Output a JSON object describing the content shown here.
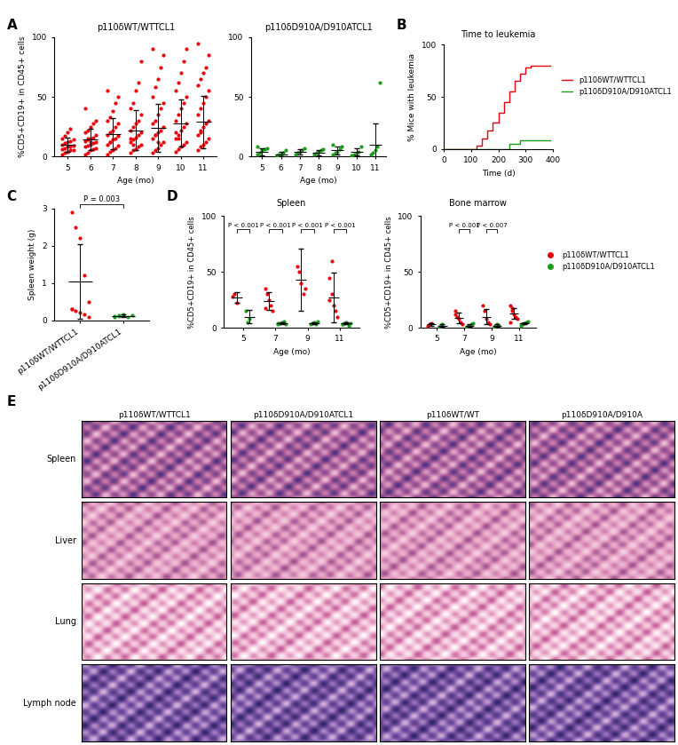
{
  "chart_data": [
    {
      "panel": "A",
      "type": "dot_plot",
      "ylabel": "%CD5+CD19+ in CD45+ cells",
      "ylim": [
        0,
        100
      ],
      "yticks": [
        0,
        50,
        100
      ],
      "groups": [
        {
          "name": "p110δWT/WTTCL1",
          "color": "#e8000b",
          "xlabel": "Age (mo)",
          "categories": [
            "5",
            "6",
            "7",
            "8",
            "9",
            "10",
            "11"
          ],
          "values": [
            [
              2,
              3,
              4,
              5,
              5,
              6,
              7,
              8,
              8,
              9,
              10,
              11,
              12,
              13,
              14,
              15,
              17,
              20,
              23
            ],
            [
              2,
              3,
              5,
              6,
              7,
              8,
              9,
              10,
              11,
              12,
              13,
              14,
              15,
              16,
              18,
              20,
              22,
              25,
              28,
              30,
              40,
              15,
              12
            ],
            [
              2,
              4,
              5,
              7,
              9,
              10,
              12,
              14,
              15,
              17,
              18,
              20,
              22,
              25,
              28,
              30,
              33,
              38,
              45,
              50,
              55,
              12
            ],
            [
              3,
              5,
              6,
              8,
              10,
              12,
              14,
              16,
              18,
              20,
              22,
              25,
              28,
              30,
              35,
              40,
              45,
              55,
              62,
              80,
              15,
              10
            ],
            [
              3,
              5,
              7,
              10,
              12,
              15,
              18,
              20,
              22,
              25,
              28,
              30,
              35,
              40,
              45,
              50,
              58,
              65,
              75,
              85,
              90,
              18,
              12
            ],
            [
              4,
              6,
              8,
              10,
              12,
              15,
              18,
              22,
              25,
              28,
              30,
              35,
              40,
              45,
              50,
              55,
              62,
              70,
              80,
              90,
              20,
              15
            ],
            [
              5,
              8,
              10,
              12,
              15,
              18,
              20,
              25,
              28,
              30,
              35,
              40,
              45,
              50,
              55,
              60,
              65,
              70,
              75,
              85,
              95,
              22
            ]
          ],
          "mean": [
            10,
            14,
            19,
            22,
            24,
            28,
            29
          ],
          "sd": [
            6,
            9,
            13,
            17,
            20,
            20,
            22
          ]
        },
        {
          "name": "p110δD910A/D910ATCL1",
          "color": "#1a9e1a",
          "xlabel": "Age (mo)",
          "categories": [
            "5",
            "6",
            "7",
            "8",
            "9",
            "10",
            "11"
          ],
          "values": [
            [
              2,
              3,
              5,
              6,
              7,
              8
            ],
            [
              1,
              2,
              2,
              3,
              5
            ],
            [
              2,
              3,
              4,
              5,
              7
            ],
            [
              2,
              3,
              4,
              5,
              6
            ],
            [
              2,
              3,
              4,
              6,
              8,
              10
            ],
            [
              1,
              2,
              3,
              4,
              8
            ],
            [
              2,
              3,
              5,
              8,
              62
            ]
          ],
          "mean": [
            4,
            2,
            4,
            3,
            5,
            4,
            10
          ],
          "sd": [
            3,
            2,
            2,
            2,
            3,
            3,
            18
          ]
        }
      ]
    },
    {
      "panel": "B",
      "type": "line",
      "title": "Time to leukemia",
      "xlabel": "Time (d)",
      "ylabel": "% Mice with leukemia",
      "xlim": [
        0,
        400
      ],
      "xticks": [
        0,
        100,
        200,
        300,
        400
      ],
      "ylim": [
        0,
        100
      ],
      "yticks": [
        0,
        50,
        100
      ],
      "legend": "right",
      "series": [
        {
          "name": "p110δWT/WTTCL1",
          "color": "#e8000b",
          "line_style": "steps",
          "x": [
            0,
            120,
            140,
            160,
            180,
            200,
            220,
            240,
            260,
            280,
            300,
            320,
            390
          ],
          "values": [
            0,
            3,
            10,
            18,
            25,
            35,
            45,
            55,
            65,
            72,
            78,
            80,
            80
          ]
        },
        {
          "name": "p110δD910A/D910ATCL1",
          "color": "#1a9e1a",
          "line_style": "steps",
          "x": [
            0,
            240,
            280,
            390
          ],
          "values": [
            0,
            5,
            8,
            8
          ]
        }
      ]
    },
    {
      "panel": "C",
      "type": "dot_plot",
      "ylabel": "Spleen weight (g)",
      "ylim": [
        0,
        3
      ],
      "yticks": [
        0,
        1,
        2,
        3
      ],
      "categories": [
        "p110δWT/WTTCL1",
        "p110δD910A/D910ATCL1"
      ],
      "colors": [
        "#e8000b",
        "#1a9e1a"
      ],
      "values": [
        [
          2.9,
          2.5,
          2.2,
          1.2,
          0.5,
          0.3,
          0.25,
          0.2,
          0.15,
          0.1,
          0.3
        ],
        [
          0.1,
          0.12,
          0.15,
          0.1,
          0.13,
          0.11,
          0.14
        ]
      ],
      "mean": [
        1.05,
        0.12
      ],
      "sd": [
        1.0,
        0.03
      ],
      "annotation": "P = 0.003"
    },
    {
      "panel": "D",
      "type": "dot_plot",
      "title": "Spleen",
      "xlabel": "Age (mo)",
      "ylabel": "%CD5+CD19+ in CD45+ cells",
      "ylim": [
        0,
        100
      ],
      "yticks": [
        0,
        50,
        100
      ],
      "categories": [
        "5",
        "7",
        "9",
        "11"
      ],
      "series": [
        {
          "color": "#e8000b",
          "values": [
            [
              28,
              30,
              22
            ],
            [
              35,
              30,
              25,
              20,
              15,
              18
            ],
            [
              55,
              50,
              40,
              30,
              35
            ],
            [
              45,
              30,
              20,
              15,
              10,
              25,
              60
            ]
          ],
          "mean": [
            27,
            24,
            43,
            27
          ],
          "sd": [
            5,
            8,
            28,
            22
          ]
        },
        {
          "color": "#1a9e1a",
          "values": [
            [
              15,
              5,
              8
            ],
            [
              3,
              4,
              5,
              6,
              3,
              4
            ],
            [
              3,
              4,
              5,
              3,
              6
            ],
            [
              3,
              4,
              5,
              2,
              4,
              3
            ]
          ],
          "mean": [
            10,
            4,
            4,
            4
          ],
          "sd": [
            6,
            1,
            1,
            1
          ]
        }
      ],
      "annotations": [
        {
          "category": "5",
          "text": "P < 0.001"
        },
        {
          "category": "7",
          "text": "P < 0.001"
        },
        {
          "category": "9",
          "text": "P < 0.001"
        },
        {
          "category": "11",
          "text": "P < 0.001"
        }
      ]
    },
    {
      "type": "dot_plot",
      "title": "Bone marrow",
      "xlabel": "Age (mo)",
      "ylabel": "%CD5+CD19+ in CD45+ cells",
      "ylim": [
        0,
        100
      ],
      "yticks": [
        0,
        50,
        100
      ],
      "categories": [
        "5",
        "7",
        "9",
        "11"
      ],
      "legend": "right",
      "series": [
        {
          "name": "p110δWT/WTTCL1",
          "color": "#e8000b",
          "values": [
            [
              2,
              3,
              4
            ],
            [
              15,
              10,
              8,
              5,
              3,
              12
            ],
            [
              20,
              15,
              8,
              5,
              3
            ],
            [
              20,
              15,
              12,
              10,
              8,
              5,
              18
            ]
          ],
          "mean": [
            3,
            9,
            10,
            13
          ],
          "sd": [
            1,
            5,
            7,
            5
          ]
        },
        {
          "name": "p110δD910A/D910ATCL1",
          "color": "#1a9e1a",
          "values": [
            [
              1,
              2,
              3
            ],
            [
              1,
              2,
              2,
              3,
              4
            ],
            [
              1,
              2,
              3,
              2
            ],
            [
              2,
              3,
              4,
              5,
              6,
              3
            ]
          ],
          "mean": [
            2,
            2,
            2,
            4
          ],
          "sd": [
            1,
            1,
            1,
            1
          ]
        }
      ],
      "annotations": [
        {
          "category": "7",
          "text": "P < 0.001"
        },
        {
          "category": "9",
          "text": "P < 0.007"
        }
      ]
    },
    {
      "panel": "E",
      "type": "image_grid",
      "columns": [
        "p110δWT/WTTCL1",
        "p110δD910A/D910ATCL1",
        "p110δWT/WT",
        "p110δD910A/D910A"
      ],
      "rows": [
        "Spleen",
        "Liver",
        "Lung",
        "Lymph node"
      ]
    }
  ]
}
